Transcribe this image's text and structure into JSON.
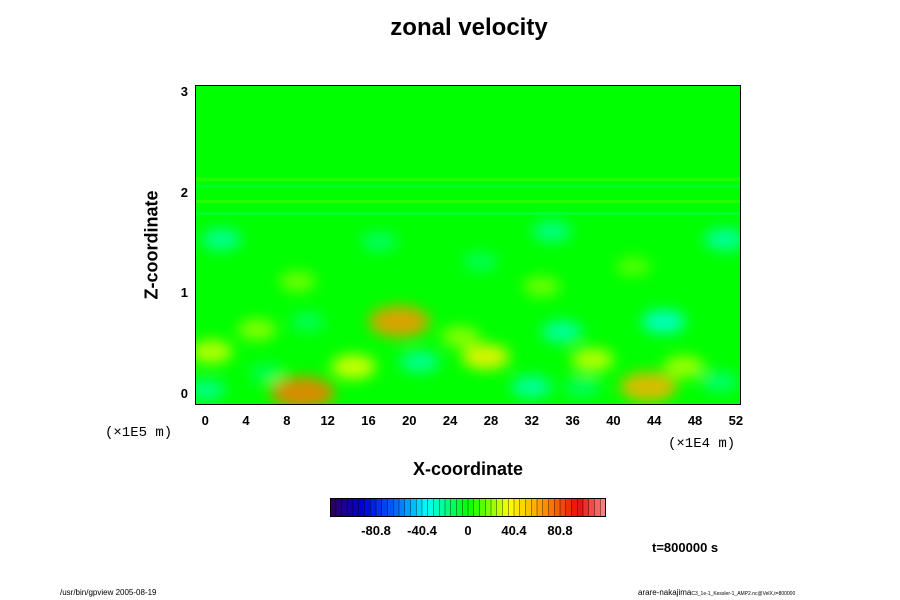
{
  "chart_data": {
    "type": "heatmap",
    "title": "zonal velocity",
    "xlabel": "X-coordinate",
    "ylabel": "Z-coordinate",
    "x_unit": "(×1E4 m)",
    "y_unit": "(×1E5 m)",
    "x_ticks": [
      "0",
      "4",
      "8",
      "12",
      "16",
      "20",
      "24",
      "28",
      "32",
      "36",
      "40",
      "44",
      "48",
      "52"
    ],
    "y_ticks": [
      "0",
      "1",
      "2",
      "3"
    ],
    "xlim": [
      -1,
      52.5
    ],
    "ylim": [
      -0.12,
      3.05
    ],
    "colorbar": {
      "ticks": [
        "-80.8",
        "-40.4",
        "0",
        "40.4",
        "80.8"
      ],
      "range": [
        -121.2,
        121.2
      ],
      "levels": 48
    },
    "background_value": 0,
    "features": [
      {
        "x": 9.5,
        "z": -0.01,
        "value": 72
      },
      {
        "x": 43.5,
        "z": 0.05,
        "value": 58
      },
      {
        "x": 19.0,
        "z": 0.7,
        "value": 66
      },
      {
        "x": 27.5,
        "z": 0.35,
        "value": 40
      },
      {
        "x": 14.5,
        "z": 0.25,
        "value": 34
      },
      {
        "x": 38.0,
        "z": 0.32,
        "value": 30
      },
      {
        "x": 25.0,
        "z": 0.55,
        "value": 22
      },
      {
        "x": 0.5,
        "z": 0.4,
        "value": 30
      },
      {
        "x": 47.0,
        "z": 0.25,
        "value": 26
      },
      {
        "x": 5.0,
        "z": 0.62,
        "value": 22
      },
      {
        "x": 33.0,
        "z": 1.05,
        "value": 18
      },
      {
        "x": 9.0,
        "z": 1.1,
        "value": 18
      },
      {
        "x": 42.0,
        "z": 1.25,
        "value": 14
      },
      {
        "x": 32.0,
        "z": 0.05,
        "value": -26
      },
      {
        "x": 0.0,
        "z": 0.02,
        "value": -22
      },
      {
        "x": 50.5,
        "z": 0.1,
        "value": -18
      },
      {
        "x": 37.0,
        "z": 0.05,
        "value": -16
      },
      {
        "x": 21.0,
        "z": 0.3,
        "value": -24
      },
      {
        "x": 45.0,
        "z": 0.7,
        "value": -32
      },
      {
        "x": 35.0,
        "z": 0.6,
        "value": -26
      },
      {
        "x": 1.5,
        "z": 1.52,
        "value": -24
      },
      {
        "x": 34.0,
        "z": 1.6,
        "value": -22
      },
      {
        "x": 51.0,
        "z": 1.52,
        "value": -26
      },
      {
        "x": 17.0,
        "z": 1.5,
        "value": -16
      },
      {
        "x": 10.0,
        "z": 0.7,
        "value": -14
      },
      {
        "x": 27.0,
        "z": 1.3,
        "value": -14
      },
      {
        "x": 6.0,
        "z": 0.18,
        "value": -14
      }
    ],
    "bands": [
      {
        "z": 1.78,
        "value": -10
      },
      {
        "z": 1.9,
        "value": 8
      },
      {
        "z": 2.05,
        "value": -8
      },
      {
        "z": 2.12,
        "value": 8
      }
    ],
    "time_label": "t=800000 s"
  },
  "footer": {
    "left": "/usr/bin/gpview 2005-08-19",
    "right": "arare-nakajima",
    "right_small": "C3_1e-1_Kessler-1_AMP2.nc@VelX,t=800000"
  }
}
